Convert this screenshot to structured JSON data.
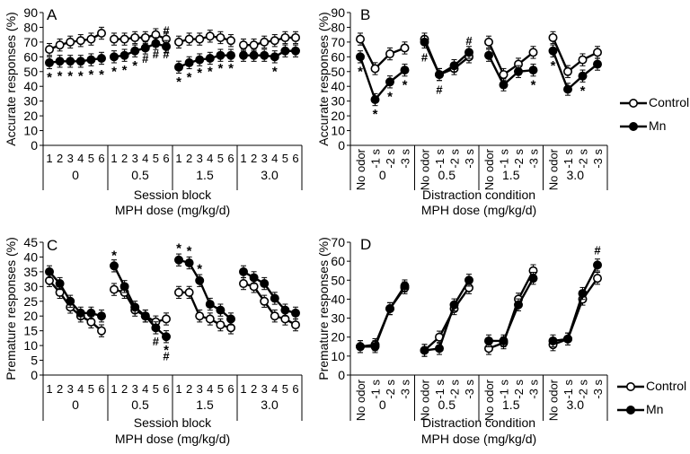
{
  "legend": {
    "control": "Control",
    "mn": "Mn"
  },
  "chart_data": [
    {
      "id": "A",
      "type": "line",
      "panel_letter": "A",
      "ylabel": "Accurate responses (%)",
      "xlabel": "Session block",
      "xlabel2": "MPH dose (mg/kg/d)",
      "ylim": [
        0,
        90
      ],
      "yticks": [
        0,
        10,
        20,
        30,
        40,
        50,
        60,
        70,
        80,
        90
      ],
      "groups": [
        "0",
        "0.5",
        "1.5",
        "3.0"
      ],
      "categories": [
        "1",
        "2",
        "3",
        "4",
        "5",
        "6"
      ],
      "series": [
        {
          "name": "Control",
          "values": [
            [
              65,
              68,
              70,
              71,
              72,
              76
            ],
            [
              72,
              72,
              73,
              73,
              75,
              72
            ],
            [
              70,
              72,
              72,
              74,
              73,
              71
            ],
            [
              68,
              68,
              70,
              71,
              73,
              73
            ]
          ]
        },
        {
          "name": "Mn",
          "values": [
            [
              56,
              57,
              57,
              57,
              58,
              59
            ],
            [
              60,
              61,
              64,
              66,
              69,
              67
            ],
            [
              53,
              56,
              58,
              59,
              61,
              61
            ],
            [
              61,
              61,
              61,
              60,
              64,
              64
            ]
          ]
        }
      ],
      "annotations": [
        {
          "text": "*",
          "group": 0,
          "idx": 0,
          "y": 48
        },
        {
          "text": "*",
          "group": 0,
          "idx": 1,
          "y": 49
        },
        {
          "text": "*",
          "group": 0,
          "idx": 2,
          "y": 49
        },
        {
          "text": "*",
          "group": 0,
          "idx": 3,
          "y": 49
        },
        {
          "text": "*",
          "group": 0,
          "idx": 4,
          "y": 50
        },
        {
          "text": "*",
          "group": 0,
          "idx": 5,
          "y": 50
        },
        {
          "text": "*",
          "group": 1,
          "idx": 0,
          "y": 52
        },
        {
          "text": "*",
          "group": 1,
          "idx": 1,
          "y": 53
        },
        {
          "text": "*",
          "group": 1,
          "idx": 2,
          "y": 56
        },
        {
          "text": "#",
          "group": 1,
          "idx": 3,
          "y": 59
        },
        {
          "text": "#",
          "group": 1,
          "idx": 4,
          "y": 62
        },
        {
          "text": "#",
          "group": 1,
          "idx": 5,
          "y": 62
        },
        {
          "text": "#",
          "group": 1,
          "idx": 5,
          "y": 78
        },
        {
          "text": "*",
          "group": 2,
          "idx": 0,
          "y": 45
        },
        {
          "text": "*",
          "group": 2,
          "idx": 1,
          "y": 48
        },
        {
          "text": "*",
          "group": 2,
          "idx": 2,
          "y": 51
        },
        {
          "text": "*",
          "group": 2,
          "idx": 3,
          "y": 52
        },
        {
          "text": "*",
          "group": 2,
          "idx": 4,
          "y": 54
        },
        {
          "text": "*",
          "group": 2,
          "idx": 5,
          "y": 54
        },
        {
          "text": "*",
          "group": 3,
          "idx": 3,
          "y": 52
        }
      ]
    },
    {
      "id": "B",
      "type": "line",
      "panel_letter": "B",
      "ylabel": "Accurate responses (%)",
      "xlabel": "Distraction condition",
      "xlabel2": "MPH dose (mg/kg/d)",
      "ylim": [
        0,
        90
      ],
      "yticks": [
        0,
        10,
        20,
        30,
        40,
        50,
        60,
        70,
        80,
        90
      ],
      "groups": [
        "0",
        "0.5",
        "1.5",
        "3.0"
      ],
      "categories": [
        "No odor",
        "-1 s",
        "-2 s",
        "-3 s"
      ],
      "series": [
        {
          "name": "Control",
          "values": [
            [
              72,
              52,
              62,
              66
            ],
            [
              72,
              48,
              52,
              60
            ],
            [
              70,
              48,
              55,
              63
            ],
            [
              73,
              50,
              58,
              63
            ]
          ]
        },
        {
          "name": "Mn",
          "values": [
            [
              60,
              31,
              43,
              51
            ],
            [
              70,
              48,
              54,
              63
            ],
            [
              61,
              41,
              50,
              51
            ],
            [
              64,
              38,
              47,
              55
            ]
          ]
        }
      ],
      "annotations": [
        {
          "text": "*",
          "group": 0,
          "idx": 0,
          "y": 52
        },
        {
          "text": "*",
          "group": 0,
          "idx": 1,
          "y": 23
        },
        {
          "text": "*",
          "group": 0,
          "idx": 2,
          "y": 35
        },
        {
          "text": "*",
          "group": 0,
          "idx": 3,
          "y": 43
        },
        {
          "text": "#",
          "group": 1,
          "idx": 0,
          "y": 60
        },
        {
          "text": "#",
          "group": 1,
          "idx": 1,
          "y": 38
        },
        {
          "text": "#",
          "group": 1,
          "idx": 3,
          "y": 71
        },
        {
          "text": "*",
          "group": 2,
          "idx": 3,
          "y": 43
        },
        {
          "text": "*",
          "group": 3,
          "idx": 0,
          "y": 56
        },
        {
          "text": "*",
          "group": 3,
          "idx": 2,
          "y": 39
        }
      ]
    },
    {
      "id": "C",
      "type": "line",
      "panel_letter": "C",
      "ylabel": "Premature responses (%)",
      "xlabel": "Session block",
      "xlabel2": "MPH dose (mg/kg/d)",
      "ylim": [
        0,
        45
      ],
      "yticks": [
        0,
        5,
        10,
        15,
        20,
        25,
        30,
        35,
        40,
        45
      ],
      "groups": [
        "0",
        "0.5",
        "1.5",
        "3.0"
      ],
      "categories": [
        "1",
        "2",
        "3",
        "4",
        "5",
        "6"
      ],
      "series": [
        {
          "name": "Control",
          "values": [
            [
              32,
              28,
              23,
              20,
              18,
              15
            ],
            [
              29,
              28,
              22,
              20,
              18,
              19
            ],
            [
              28,
              28,
              20,
              19,
              17,
              16
            ],
            [
              31,
              30,
              25,
              20,
              19,
              17
            ]
          ]
        },
        {
          "name": "Mn",
          "values": [
            [
              35,
              31,
              25,
              21,
              21,
              20
            ],
            [
              37,
              30,
              23,
              20,
              16,
              13
            ],
            [
              39,
              38,
              32,
              24,
              22,
              19
            ],
            [
              35,
              33,
              31,
              26,
              22,
              21
            ]
          ]
        }
      ],
      "annotations": [
        {
          "text": "*",
          "group": 1,
          "idx": 0,
          "y": 41.5
        },
        {
          "text": "#",
          "group": 1,
          "idx": 4,
          "y": 11.5
        },
        {
          "text": "*",
          "group": 1,
          "idx": 5,
          "y": 9.5
        },
        {
          "text": "#",
          "group": 1,
          "idx": 5,
          "y": 6.5
        },
        {
          "text": "*",
          "group": 2,
          "idx": 0,
          "y": 44
        },
        {
          "text": "*",
          "group": 2,
          "idx": 1,
          "y": 43
        },
        {
          "text": "*",
          "group": 2,
          "idx": 2,
          "y": 37
        }
      ]
    },
    {
      "id": "D",
      "type": "line",
      "panel_letter": "D",
      "ylabel": "Premature responses (%)",
      "xlabel": "Distraction condition",
      "xlabel2": "MPH dose (mg/kg/d)",
      "ylim": [
        0,
        70
      ],
      "yticks": [
        0,
        10,
        20,
        30,
        40,
        50,
        60,
        70
      ],
      "groups": [
        "0",
        "0.5",
        "1.5",
        "3.0"
      ],
      "categories": [
        "No odor",
        "-1 s",
        "-2 s",
        "-3 s"
      ],
      "series": [
        {
          "name": "Control",
          "values": [
            [
              15,
              16,
              35,
              46
            ],
            [
              13,
              20,
              35,
              46
            ],
            [
              14,
              17,
              40,
              55
            ],
            [
              16,
              19,
              40,
              51
            ]
          ]
        },
        {
          "name": "Mn",
          "values": [
            [
              15,
              15,
              35,
              47
            ],
            [
              13,
              14,
              37,
              50
            ],
            [
              18,
              18,
              37,
              51
            ],
            [
              18,
              19,
              43,
              58
            ]
          ]
        }
      ],
      "annotations": [
        {
          "text": "#",
          "group": 3,
          "idx": 3,
          "y": 66
        }
      ]
    }
  ]
}
